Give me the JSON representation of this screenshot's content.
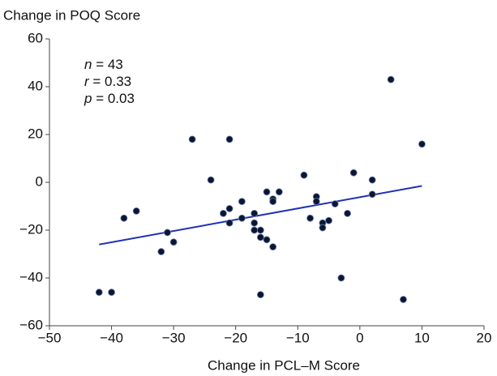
{
  "chart_data": {
    "type": "scatter",
    "y_label": "Change in POQ Score",
    "x_label": "Change in PCL–M Score",
    "annotations": [
      {
        "symbol": "n",
        "text": " = 43"
      },
      {
        "symbol": "r",
        "text": " = 0.33"
      },
      {
        "symbol": "p",
        "text": " = 0.03"
      }
    ],
    "color": "#0a1633",
    "x": [
      -42,
      -40,
      -38,
      -36,
      -32,
      -31,
      -30,
      -27,
      -24,
      -22,
      -21,
      -21,
      -21,
      -19,
      -19,
      -17,
      -17,
      -17,
      -16,
      -16,
      -16,
      -15,
      -15,
      -14,
      -14,
      -14,
      -13,
      -9,
      -8,
      -7,
      -7,
      -6,
      -6,
      -5,
      -4,
      -3,
      -2,
      -1,
      2,
      2,
      5,
      7,
      10
    ],
    "values": [
      -46,
      -46,
      -15,
      -12,
      -29,
      -21,
      -25,
      18,
      1,
      -13,
      18,
      -11,
      -17,
      -8,
      -15,
      -13,
      -17,
      -20,
      -20,
      -23,
      -47,
      -4,
      -24,
      -7,
      -8,
      -27,
      -4,
      3,
      -15,
      -6,
      -8,
      -17,
      -19,
      -16,
      -9,
      -40,
      -13,
      4,
      1,
      -5,
      43,
      -49,
      16
    ],
    "trendline": {
      "x": [
        -42,
        10
      ],
      "y": [
        -26,
        -1.5
      ],
      "color": "#1f2fb5"
    },
    "xlim": [
      -50,
      20
    ],
    "xticks": [
      {
        "value": -50,
        "label": "−50"
      },
      {
        "value": -40,
        "label": "−40"
      },
      {
        "value": -30,
        "label": "−30"
      },
      {
        "value": -20,
        "label": "−20"
      },
      {
        "value": -10,
        "label": "−10"
      },
      0,
      10,
      20
    ],
    "ylim": [
      -60,
      60
    ],
    "yticks": [
      {
        "value": -60,
        "label": "−60"
      },
      {
        "value": -40,
        "label": "−40"
      },
      {
        "value": -20,
        "label": "−20"
      },
      0,
      20,
      40,
      60
    ],
    "grid": false
  }
}
